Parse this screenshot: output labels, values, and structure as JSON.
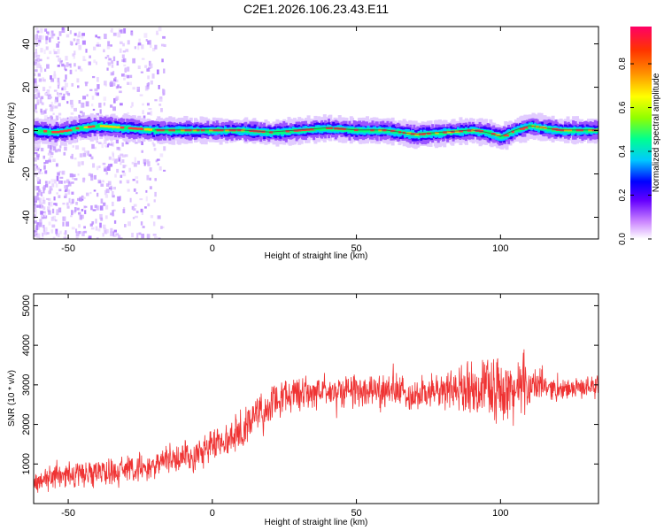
{
  "title": "C2E1.2026.106.23.43.E11",
  "chart_data": [
    {
      "type": "heatmap",
      "xlabel": "Height of straight line (km)",
      "ylabel": "Frequency (Hz)",
      "xlim": [
        -62,
        134
      ],
      "ylim": [
        -50,
        48
      ],
      "xticks": [
        -50,
        0,
        50,
        100
      ],
      "yticks": [
        -40,
        -20,
        0,
        20,
        40
      ],
      "grid": false,
      "colorbar": {
        "label": "Normalized spectral amplitude",
        "ticks": [
          0.0,
          0.2,
          0.4,
          0.6,
          0.8
        ],
        "range": [
          0,
          0.97
        ],
        "colors": [
          "#ffffff",
          "#cc88ff",
          "#6600ff",
          "#0000ff",
          "#00c8ff",
          "#00ff90",
          "#90ff00",
          "#ffff00",
          "#ff9000",
          "#ff3300",
          "#ff0066"
        ]
      },
      "band_center_hz": [
        [
          -62,
          0
        ],
        [
          -55,
          -1
        ],
        [
          -50,
          0
        ],
        [
          -47,
          1
        ],
        [
          -40,
          2
        ],
        [
          -30,
          1
        ],
        [
          -20,
          0
        ],
        [
          -10,
          0
        ],
        [
          0,
          0
        ],
        [
          10,
          0
        ],
        [
          20,
          -1
        ],
        [
          30,
          0
        ],
        [
          40,
          1
        ],
        [
          50,
          0
        ],
        [
          60,
          0
        ],
        [
          70,
          -2
        ],
        [
          80,
          -1
        ],
        [
          90,
          0
        ],
        [
          95,
          -1
        ],
        [
          100,
          -3
        ],
        [
          105,
          0
        ],
        [
          110,
          2
        ],
        [
          115,
          1
        ],
        [
          120,
          0
        ],
        [
          134,
          0
        ]
      ]
    },
    {
      "type": "line",
      "xlabel": "Height of straight line (km)",
      "ylabel": "SNR (10 * v/v)",
      "xlim": [
        -62,
        134
      ],
      "ylim": [
        0,
        5300
      ],
      "xticks": [
        -50,
        0,
        50,
        100
      ],
      "yticks": [
        1000,
        2000,
        3000,
        4000,
        5000
      ],
      "grid": false,
      "series": [
        {
          "color": "#ef3333",
          "x": [
            -62,
            -55,
            -50,
            -45,
            -40,
            -35,
            -30,
            -25,
            -20,
            -15,
            -10,
            -5,
            0,
            5,
            10,
            15,
            20,
            25,
            30,
            35,
            40,
            45,
            50,
            55,
            60,
            65,
            70,
            75,
            80,
            85,
            90,
            95,
            100,
            105,
            110,
            115,
            120,
            125,
            130,
            134
          ],
          "y": [
            500,
            700,
            750,
            700,
            800,
            800,
            850,
            900,
            1000,
            1100,
            1200,
            1250,
            1500,
            1600,
            1900,
            2200,
            2500,
            2700,
            2800,
            2800,
            2850,
            2850,
            2900,
            2850,
            2900,
            2800,
            2750,
            2800,
            2850,
            2900,
            2950,
            2950,
            2900,
            2850,
            2950,
            3000,
            2850,
            2900,
            2950,
            3000
          ],
          "spread": [
            350,
            400,
            400,
            350,
            450,
            400,
            400,
            450,
            450,
            450,
            500,
            500,
            550,
            500,
            550,
            500,
            550,
            500,
            550,
            500,
            500,
            500,
            550,
            500,
            500,
            500,
            500,
            500,
            600,
            650,
            750,
            850,
            1000,
            900,
            650,
            400,
            300,
            300,
            300,
            300
          ]
        }
      ]
    }
  ]
}
